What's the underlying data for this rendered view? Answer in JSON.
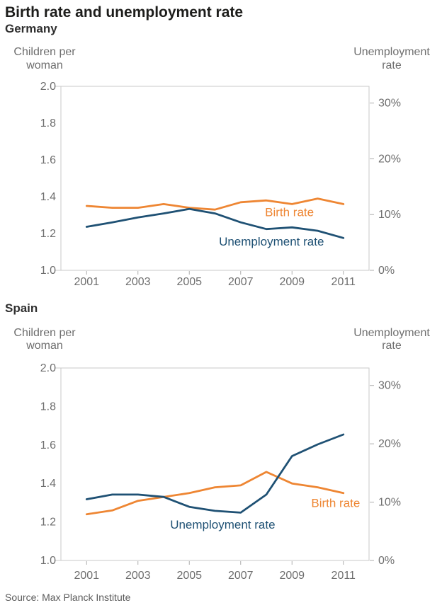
{
  "page": {
    "title": "Birth rate and unemployment rate",
    "source": "Source: Max Planck Institute"
  },
  "colors": {
    "birth": "#EE8633",
    "unemployment": "#1F5174",
    "axis_line": "#C9C9C9",
    "tick_mark": "#ADADAD",
    "axis_text": "#6E6E6E",
    "title_text": "#1D1D1B",
    "subtitle_text": "#2F2F2F",
    "source_text": "#5A5A5A"
  },
  "chart_data": [
    {
      "type": "line",
      "title": "Germany",
      "x": [
        2001,
        2002,
        2003,
        2004,
        2005,
        2006,
        2007,
        2008,
        2009,
        2010,
        2011
      ],
      "xlim": [
        2000,
        2012
      ],
      "xticks": [
        2001,
        2003,
        2005,
        2007,
        2009,
        2011
      ],
      "grid": false,
      "left_axis": {
        "label_lines": [
          "Children per",
          "woman"
        ],
        "lim": [
          1.0,
          2.0
        ],
        "ticks": [
          "2.0",
          "1.8",
          "1.6",
          "1.4",
          "1.2",
          "1.0"
        ]
      },
      "right_axis": {
        "label_lines": [
          "Unemployment",
          "rate"
        ],
        "lim": [
          0,
          33
        ],
        "ticks": [
          30,
          20,
          10,
          0
        ],
        "tick_suffix": "%"
      },
      "series": [
        {
          "name": "Birth rate",
          "axis": "left",
          "color_key": "birth",
          "values": [
            1.35,
            1.34,
            1.34,
            1.36,
            1.34,
            1.33,
            1.37,
            1.38,
            1.36,
            1.39,
            1.36
          ],
          "label": {
            "text": "Birth rate",
            "x": 2008.9,
            "y": 1.318
          }
        },
        {
          "name": "Unemployment rate",
          "axis": "right",
          "color_key": "unemployment",
          "values": [
            7.8,
            8.6,
            9.5,
            10.2,
            11.0,
            10.2,
            8.6,
            7.4,
            7.7,
            7.1,
            5.8
          ],
          "label": {
            "text": "Unemployment rate",
            "x": 2008.2,
            "y": 5.2
          }
        }
      ]
    },
    {
      "type": "line",
      "title": "Spain",
      "x": [
        2001,
        2002,
        2003,
        2004,
        2005,
        2006,
        2007,
        2008,
        2009,
        2010,
        2011
      ],
      "xlim": [
        2000,
        2012
      ],
      "xticks": [
        2001,
        2003,
        2005,
        2007,
        2009,
        2011
      ],
      "grid": false,
      "left_axis": {
        "label_lines": [
          "Children per",
          "woman"
        ],
        "lim": [
          1.0,
          2.0
        ],
        "ticks": [
          "2.0",
          "1.8",
          "1.6",
          "1.4",
          "1.2",
          "1.0"
        ]
      },
      "right_axis": {
        "label_lines": [
          "Unemployment",
          "rate"
        ],
        "lim": [
          0,
          33
        ],
        "ticks": [
          30,
          20,
          10,
          0
        ],
        "tick_suffix": "%"
      },
      "series": [
        {
          "name": "Birth rate",
          "axis": "left",
          "color_key": "birth",
          "values": [
            1.24,
            1.26,
            1.31,
            1.33,
            1.35,
            1.38,
            1.39,
            1.46,
            1.4,
            1.38,
            1.35
          ],
          "label": {
            "text": "Birth rate",
            "x": 2010.7,
            "y": 1.3
          }
        },
        {
          "name": "Unemployment rate",
          "axis": "right",
          "color_key": "unemployment",
          "values": [
            10.5,
            11.3,
            11.3,
            10.9,
            9.2,
            8.5,
            8.2,
            11.3,
            17.9,
            19.9,
            21.6
          ],
          "label": {
            "text": "Unemployment rate",
            "x": 2006.3,
            "y": 6.2
          }
        }
      ]
    }
  ]
}
